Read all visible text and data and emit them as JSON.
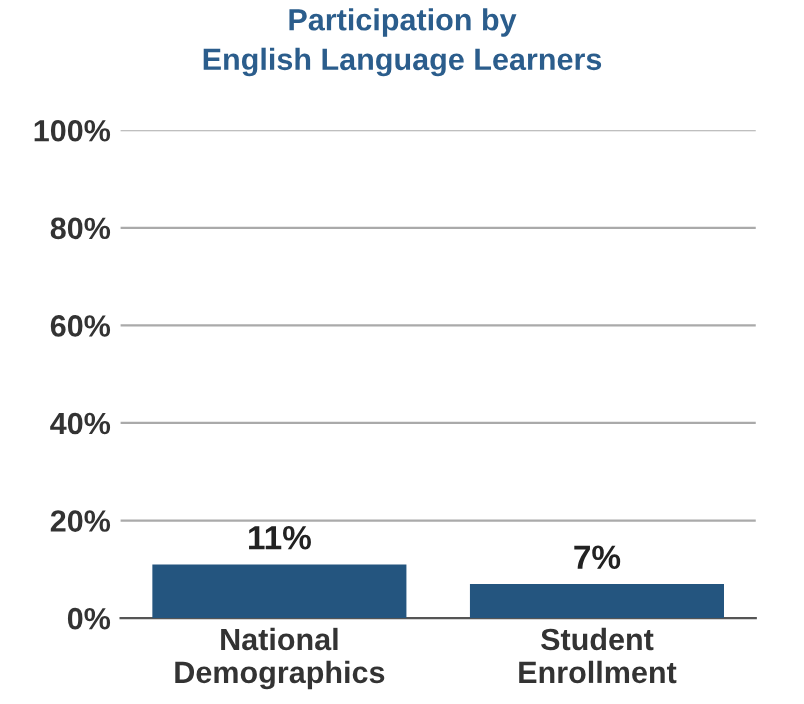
{
  "chart_data": {
    "type": "bar",
    "title": "Participation by\nEnglish Language Learners",
    "categories": [
      "National\nDemographics",
      "Student\nEnrollment"
    ],
    "values": [
      11,
      7
    ],
    "color": "#24557f",
    "value_labels": [
      "11%",
      "7%"
    ],
    "ylim": [
      0,
      100
    ],
    "yticks": [
      {
        "value": 0,
        "label": "0%"
      },
      {
        "value": 20,
        "label": "20%"
      },
      {
        "value": 40,
        "label": "40%"
      },
      {
        "value": 60,
        "label": "60%"
      },
      {
        "value": 80,
        "label": "80%"
      },
      {
        "value": 100,
        "label": "100%"
      }
    ],
    "grid": "y"
  }
}
